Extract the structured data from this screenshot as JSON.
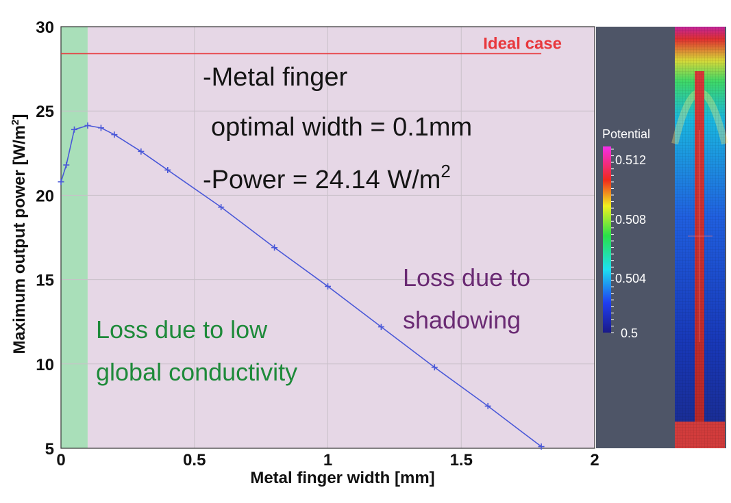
{
  "chart_data": {
    "type": "line",
    "title": "",
    "xlabel": "Metal finger width [mm]",
    "ylabel": "Maximum output power [W/m",
    "ylabel_sup": "2",
    "ylabel_tail": "]",
    "xlim": [
      0,
      2
    ],
    "ylim": [
      5,
      30
    ],
    "grid": true,
    "x_ticks": [
      "0",
      "0.5",
      "1",
      "1.5",
      "2"
    ],
    "x_tick_values": [
      0,
      0.5,
      1,
      1.5,
      2
    ],
    "y_ticks": [
      "5",
      "10",
      "15",
      "20",
      "25",
      "30"
    ],
    "y_tick_values": [
      5,
      10,
      15,
      20,
      25,
      30
    ],
    "series": [
      {
        "color": "#4a58d8",
        "marker": "plus",
        "x": [
          0,
          0.02,
          0.05,
          0.1,
          0.15,
          0.2,
          0.3,
          0.4,
          0.6,
          0.8,
          1.0,
          1.2,
          1.4,
          1.6,
          1.8
        ],
        "y": [
          20.8,
          21.8,
          23.9,
          24.14,
          24.0,
          23.6,
          22.6,
          21.5,
          19.3,
          16.9,
          14.6,
          12.2,
          9.8,
          7.5,
          5.1
        ]
      }
    ],
    "ideal_case": {
      "value": 28.4,
      "x_end": 1.8,
      "label": "Ideal case",
      "color": "#e8383d"
    },
    "regions": [
      {
        "x_from": 0,
        "x_to": 0.1,
        "color": "#a9dfb9"
      },
      {
        "x_from": 0.1,
        "x_to": 2,
        "color": "#e6d7e6"
      }
    ],
    "annotations": {
      "line1": "-Metal finger",
      "line2": "optimal width = 0.1mm",
      "line3_prefix": "-Power = 24.14 W/m",
      "line3_sup": "2",
      "green_line1": "Loss due to low",
      "green_line2": "global conductivity",
      "purple_line1": "Loss due to",
      "purple_line2": "shadowing"
    }
  },
  "inset": {
    "colorbar_title": "Potential",
    "colorbar_ticks": [
      "0.512",
      "0.508",
      "0.504",
      "0.5"
    ],
    "panel_color": "#4e5567"
  }
}
